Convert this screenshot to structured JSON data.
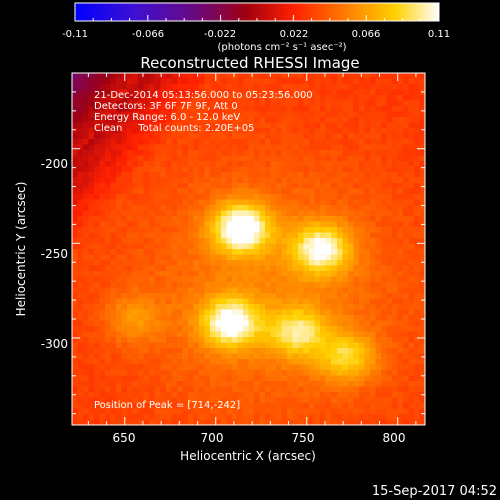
{
  "colorbar": {
    "ticks": [
      "-0.11",
      "-0.066",
      "-0.022",
      "0.022",
      "0.066",
      "0.11"
    ],
    "range": [
      -0.11,
      0.11
    ],
    "unit_label": "(photons cm⁻² s⁻¹ asec⁻²)",
    "palette": [
      "#0000ff",
      "#5010c8",
      "#7d0a6b",
      "#b10000",
      "#ff2a00",
      "#ff8c00",
      "#ffd400",
      "#ffffff"
    ]
  },
  "chart_data": {
    "type": "heatmap",
    "title": "Reconstructed RHESSI Image",
    "xlabel": "Heliocentric X (arcsec)",
    "ylabel": "Heliocentric Y (arcsec)",
    "xlim": [
      621,
      815
    ],
    "ylim": [
      -346,
      -160
    ],
    "xticks": [
      650,
      700,
      750,
      800
    ],
    "yticks": [
      -200,
      -250,
      -300
    ],
    "annotations": [
      "21-Dec-2014 05:13:56.000 to 05:23:56.000",
      "Detectors: 3F 6F 7F 9F, Att 0",
      "Energy Range: 6.0 - 12.0 keV",
      "Clean     Total counts: 2.20E+05"
    ],
    "peak_label": "Position of Peak = [714,-242]",
    "peak": [
      714,
      -242
    ],
    "sources": [
      {
        "x": 714,
        "y": -242,
        "peak": 0.11
      },
      {
        "x": 758,
        "y": -253,
        "peak": 0.095
      },
      {
        "x": 708,
        "y": -292,
        "peak": 0.1
      },
      {
        "x": 745,
        "y": -297,
        "peak": 0.08
      },
      {
        "x": 772,
        "y": -310,
        "peak": 0.075
      },
      {
        "x": 655,
        "y": -290,
        "peak": 0.055
      }
    ],
    "background_level": 0.03
  },
  "footer": {
    "timestamp": "15-Sep-2017 04:52"
  }
}
